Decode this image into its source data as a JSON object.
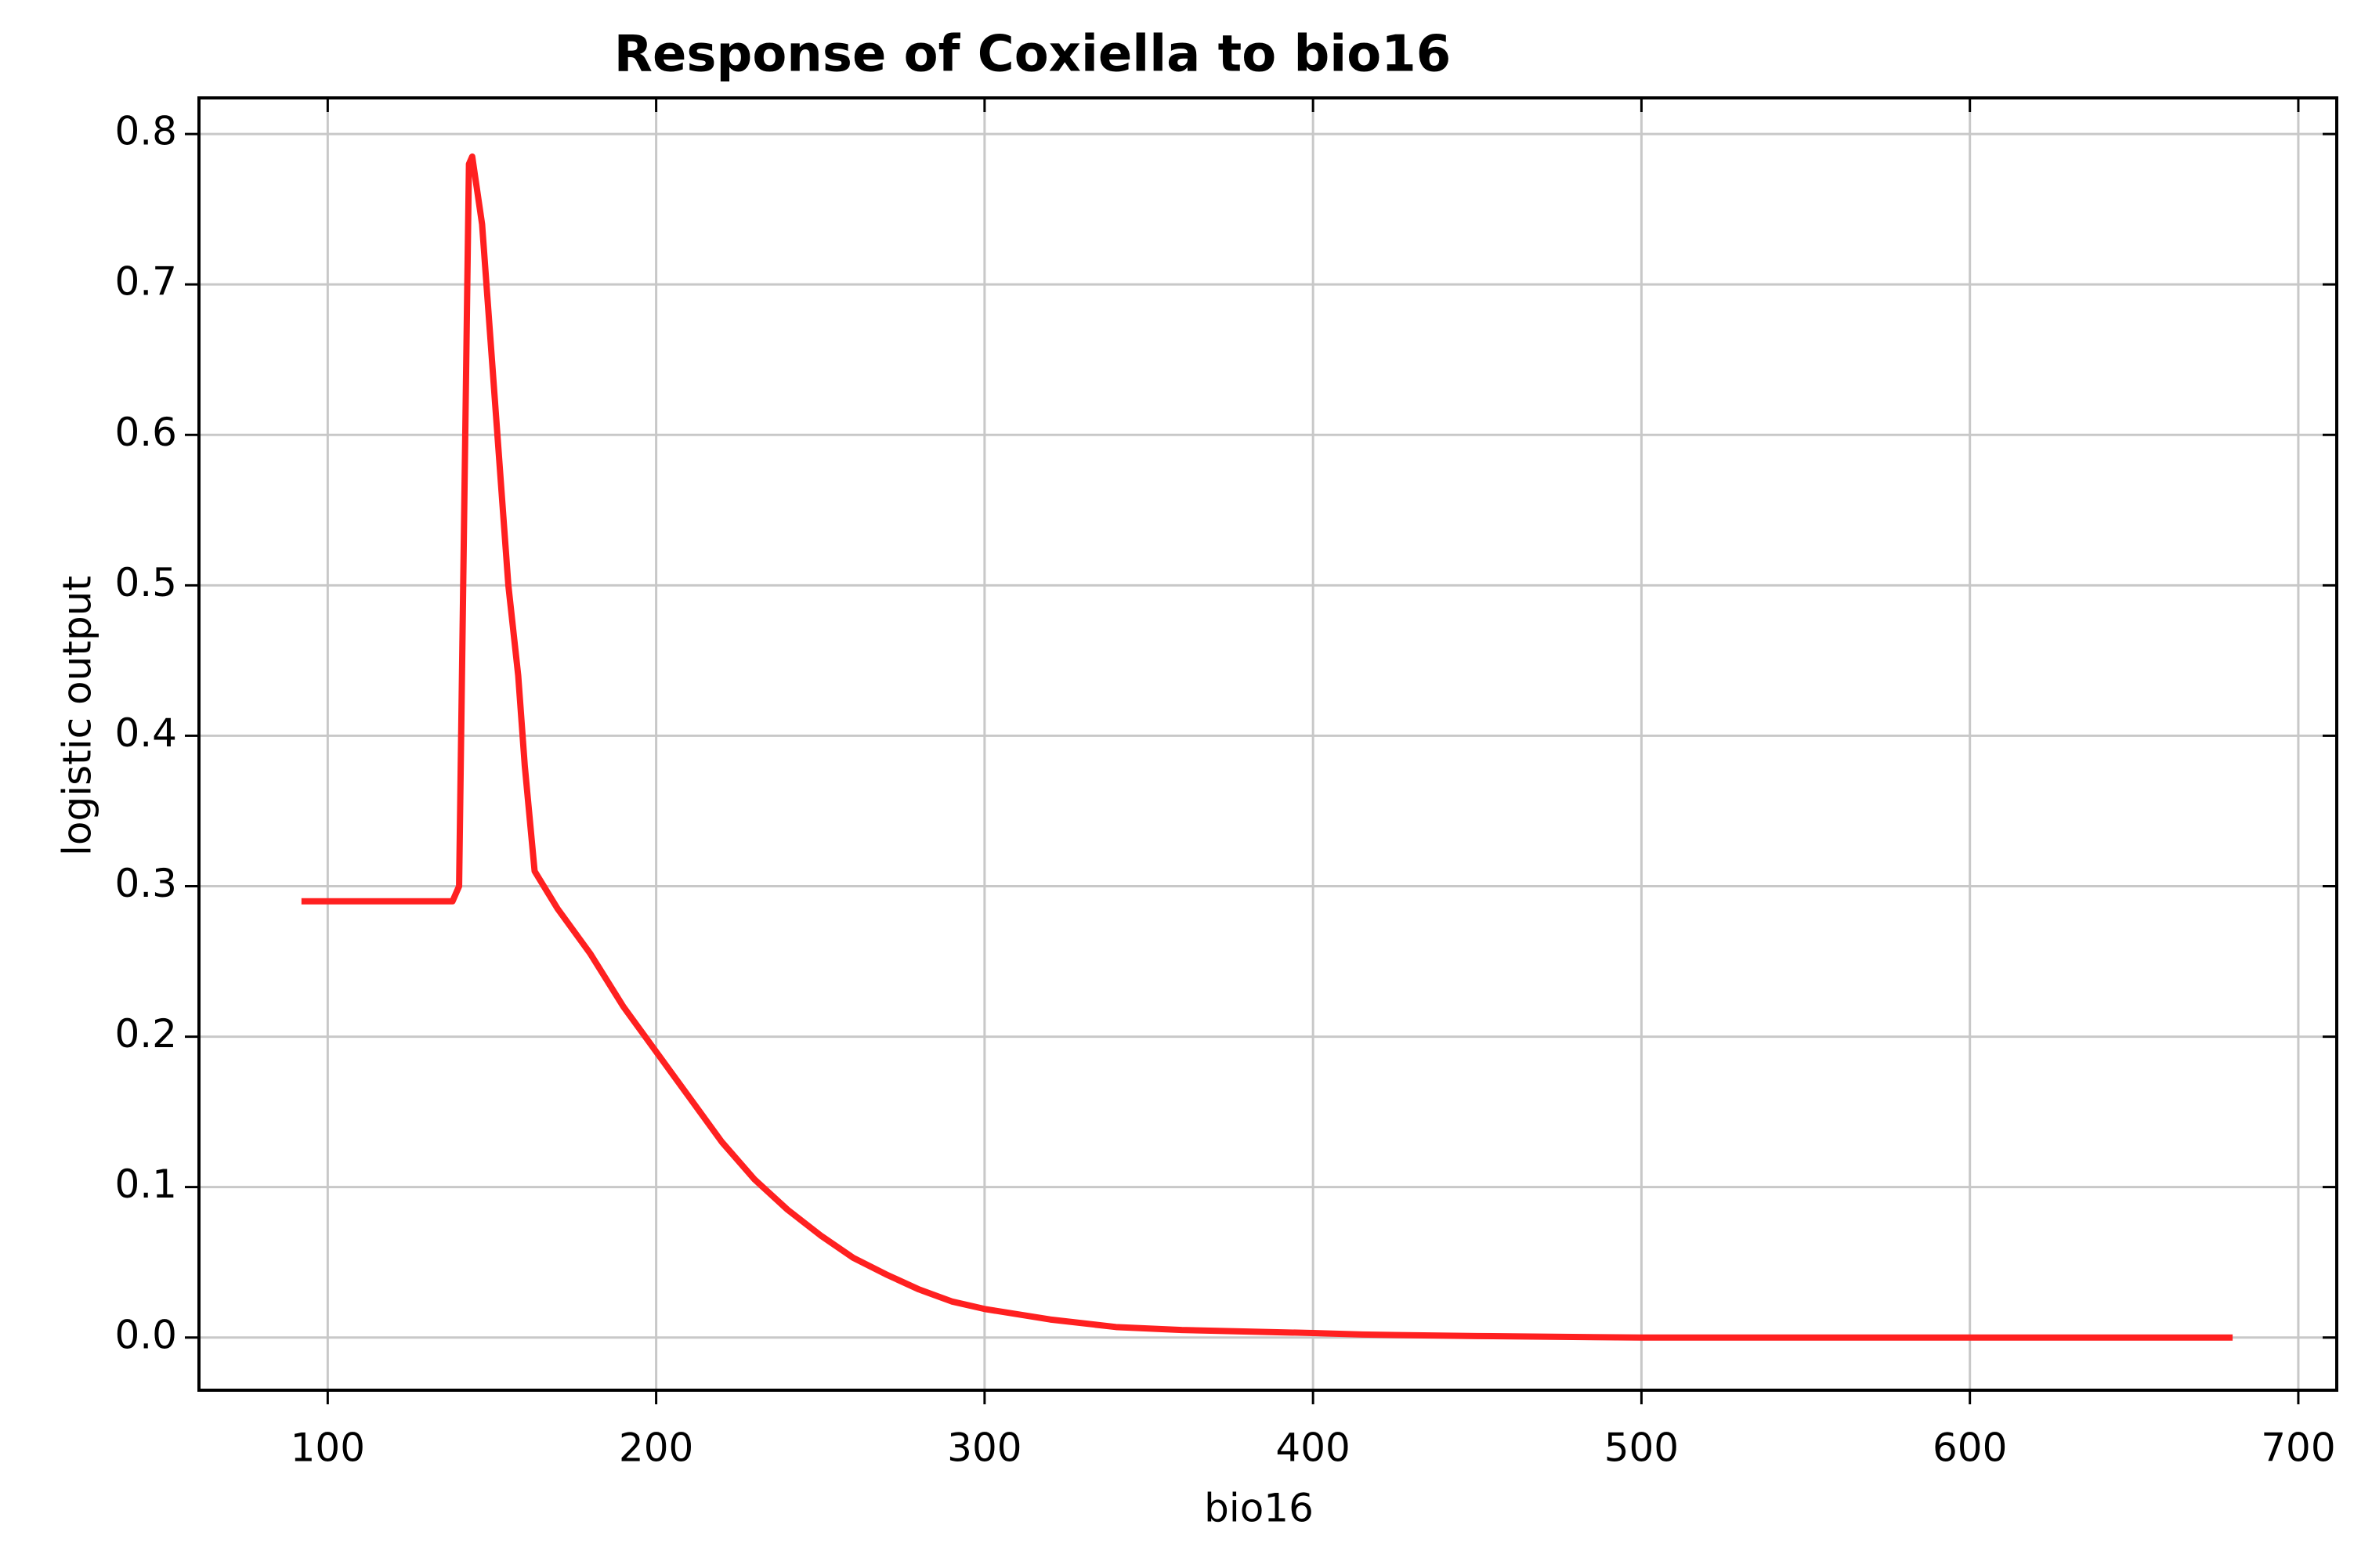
{
  "chart_data": {
    "type": "line",
    "title": "Response of Coxiella to bio16",
    "xlabel": "bio16",
    "ylabel": "logistic output",
    "x": [
      92,
      138,
      140,
      143,
      144,
      147,
      150,
      155,
      158,
      160,
      163,
      170,
      180,
      190,
      200,
      210,
      220,
      230,
      240,
      250,
      260,
      270,
      280,
      290,
      300,
      320,
      340,
      360,
      400,
      415,
      450,
      500,
      680
    ],
    "series": [
      {
        "name": "Coxiella",
        "color": "#ff2020",
        "values": [
          0.29,
          0.29,
          0.3,
          0.78,
          0.785,
          0.74,
          0.65,
          0.5,
          0.44,
          0.38,
          0.31,
          0.285,
          0.255,
          0.22,
          0.19,
          0.16,
          0.13,
          0.105,
          0.085,
          0.068,
          0.053,
          0.042,
          0.032,
          0.024,
          0.019,
          0.012,
          0.007,
          0.005,
          0.003,
          0.002,
          0.001,
          0.0,
          0.0
        ]
      }
    ],
    "xlim": [
      60.8,
      711.7
    ],
    "xticks": [
      100,
      200,
      300,
      400,
      500,
      600,
      700
    ],
    "ylim": [
      -0.035,
      0.824
    ],
    "yticks": [
      {
        "value": 0,
        "label": "0.0"
      },
      0.1,
      0.2,
      0.3,
      0.4,
      0.5,
      0.6,
      0.7,
      0.8
    ],
    "grid": true
  }
}
